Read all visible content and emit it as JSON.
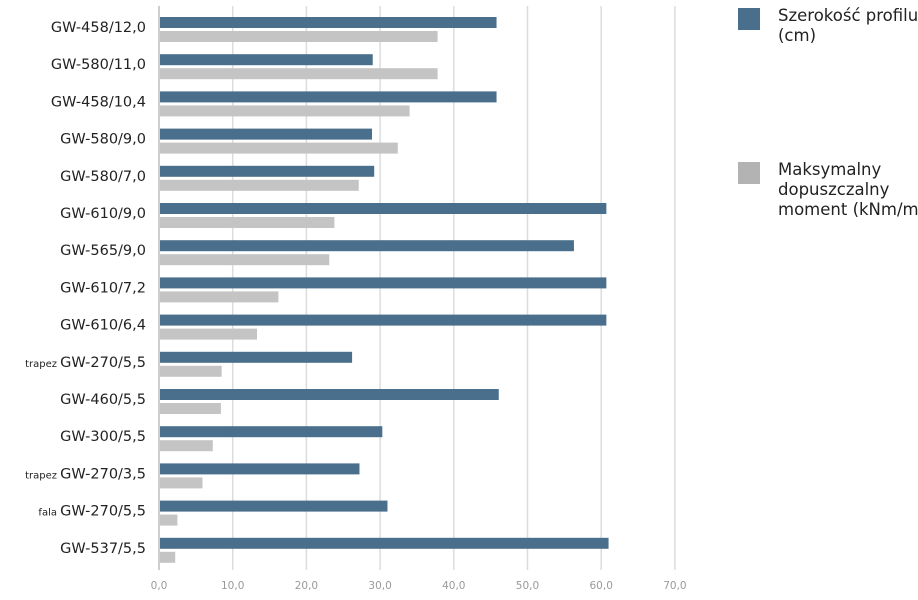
{
  "chart_data": {
    "type": "bar",
    "orientation": "horizontal",
    "title": "",
    "xlabel": "",
    "ylabel": "",
    "xlim": [
      0,
      70
    ],
    "x_ticks": [
      "0,0",
      "10,0",
      "20,0",
      "30,0",
      "40,0",
      "50,0",
      "60,0",
      "70,0"
    ],
    "grid": true,
    "legend_position": "top-right",
    "categories": [
      {
        "prefix": "",
        "label": "GW-458/12,0"
      },
      {
        "prefix": "",
        "label": "GW-580/11,0"
      },
      {
        "prefix": "",
        "label": "GW-458/10,4"
      },
      {
        "prefix": "",
        "label": "GW-580/9,0"
      },
      {
        "prefix": "",
        "label": "GW-580/7,0"
      },
      {
        "prefix": "",
        "label": "GW-610/9,0"
      },
      {
        "prefix": "",
        "label": "GW-565/9,0"
      },
      {
        "prefix": "",
        "label": "GW-610/7,2"
      },
      {
        "prefix": "",
        "label": "GW-610/6,4"
      },
      {
        "prefix": "trapez",
        "label": "GW-270/5,5"
      },
      {
        "prefix": "",
        "label": "GW-460/5,5"
      },
      {
        "prefix": "",
        "label": "GW-300/5,5"
      },
      {
        "prefix": "trapez",
        "label": "GW-270/3,5"
      },
      {
        "prefix": "fala",
        "label": "GW-270/5,5"
      },
      {
        "prefix": "",
        "label": "GW-537/5,5"
      }
    ],
    "series": [
      {
        "name": "Szerokość profilu (cm)",
        "color": "#4a6f8c",
        "values": [
          45.8,
          29.0,
          45.8,
          28.9,
          29.2,
          60.7,
          56.3,
          60.7,
          60.7,
          26.2,
          46.1,
          30.3,
          27.2,
          31.0,
          61.0
        ]
      },
      {
        "name": "Maksymalny dopuszczalny moment (kNm/m)",
        "color": "#c4c4c4",
        "values": [
          37.8,
          37.8,
          34.0,
          32.4,
          27.1,
          23.8,
          23.1,
          16.2,
          13.3,
          8.5,
          8.4,
          7.3,
          5.9,
          2.5,
          2.2
        ]
      }
    ]
  }
}
